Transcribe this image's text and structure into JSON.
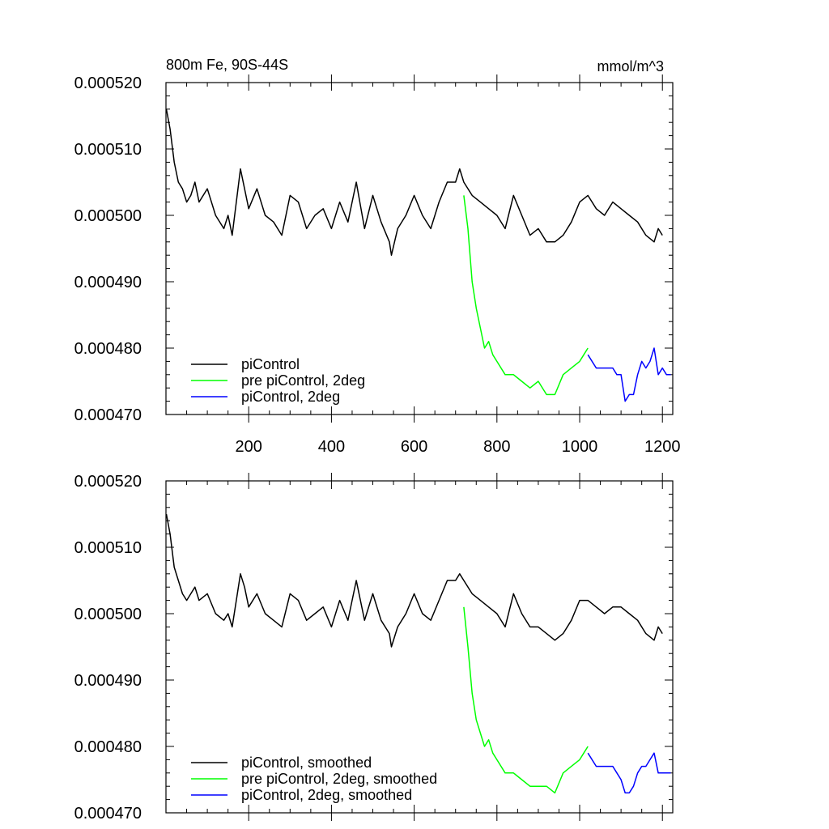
{
  "chart_data": [
    {
      "type": "line",
      "title": "800m Fe, 90S-44S",
      "units": "mmol/m^3",
      "xlim": [
        0,
        1225
      ],
      "ylim": [
        0.00047,
        0.00052
      ],
      "x_ticks": [
        "200",
        "400",
        "600",
        "800",
        "1000",
        "1200"
      ],
      "y_ticks": [
        "0.000520",
        "0.000510",
        "0.000500",
        "0.000490",
        "0.000480",
        "0.000470"
      ],
      "legend_position": "bottom-left",
      "series": [
        {
          "name": "piControl",
          "color": "#000000",
          "x": [
            1,
            10,
            20,
            30,
            40,
            50,
            60,
            70,
            80,
            100,
            120,
            140,
            150,
            160,
            170,
            180,
            190,
            200,
            220,
            240,
            260,
            280,
            300,
            320,
            340,
            360,
            380,
            400,
            420,
            440,
            460,
            480,
            500,
            520,
            540,
            545,
            560,
            580,
            600,
            620,
            640,
            660,
            680,
            700,
            710,
            720,
            740,
            760,
            780,
            800,
            820,
            840,
            860,
            880,
            900,
            920,
            940,
            960,
            980,
            1000,
            1020,
            1040,
            1060,
            1080,
            1100,
            1120,
            1140,
            1160,
            1180,
            1190,
            1200
          ],
          "y": [
            0.000516,
            0.000513,
            0.000508,
            0.000505,
            0.000504,
            0.000502,
            0.000503,
            0.000505,
            0.000502,
            0.000504,
            0.0005,
            0.000498,
            0.0005,
            0.000497,
            0.000502,
            0.000507,
            0.000504,
            0.000501,
            0.000504,
            0.0005,
            0.000499,
            0.000497,
            0.000503,
            0.000502,
            0.000498,
            0.0005,
            0.000501,
            0.000498,
            0.000502,
            0.000499,
            0.000505,
            0.000498,
            0.000503,
            0.000499,
            0.000496,
            0.000494,
            0.000498,
            0.0005,
            0.000503,
            0.0005,
            0.000498,
            0.000502,
            0.000505,
            0.000505,
            0.000507,
            0.000505,
            0.000503,
            0.000502,
            0.000501,
            0.0005,
            0.000498,
            0.000503,
            0.0005,
            0.000497,
            0.000498,
            0.000496,
            0.000496,
            0.000497,
            0.000499,
            0.000502,
            0.000503,
            0.000501,
            0.0005,
            0.000502,
            0.000501,
            0.0005,
            0.000499,
            0.000497,
            0.000496,
            0.000498,
            0.000497
          ]
        },
        {
          "name": "pre piControl, 2deg",
          "color": "#00ff00",
          "x": [
            720,
            730,
            740,
            750,
            760,
            770,
            780,
            790,
            800,
            820,
            840,
            860,
            880,
            900,
            920,
            940,
            960,
            980,
            1000,
            1010,
            1020
          ],
          "y": [
            0.000503,
            0.000498,
            0.00049,
            0.000486,
            0.000483,
            0.00048,
            0.000481,
            0.000479,
            0.000478,
            0.000476,
            0.000476,
            0.000475,
            0.000474,
            0.000475,
            0.000473,
            0.000473,
            0.000476,
            0.000477,
            0.000478,
            0.000479,
            0.00048
          ]
        },
        {
          "name": "piControl, 2deg",
          "color": "#0000ff",
          "x": [
            1020,
            1040,
            1060,
            1080,
            1090,
            1100,
            1110,
            1120,
            1130,
            1140,
            1150,
            1160,
            1170,
            1180,
            1190,
            1200,
            1210,
            1220
          ],
          "y": [
            0.000479,
            0.000477,
            0.000477,
            0.000477,
            0.000476,
            0.000476,
            0.000472,
            0.000473,
            0.000473,
            0.000476,
            0.000478,
            0.000477,
            0.000478,
            0.00048,
            0.000476,
            0.000477,
            0.000476,
            0.000476
          ]
        }
      ]
    },
    {
      "type": "line",
      "xlim": [
        0,
        1225
      ],
      "ylim": [
        0.00047,
        0.00052
      ],
      "y_ticks": [
        "0.000520",
        "0.000510",
        "0.000500",
        "0.000490",
        "0.000480",
        "0.000470"
      ],
      "legend_position": "bottom-left",
      "series": [
        {
          "name": "piControl, smoothed",
          "color": "#000000",
          "x": [
            1,
            10,
            20,
            30,
            40,
            50,
            60,
            70,
            80,
            100,
            120,
            140,
            150,
            160,
            170,
            180,
            190,
            200,
            220,
            240,
            260,
            280,
            300,
            320,
            340,
            360,
            380,
            400,
            420,
            440,
            460,
            480,
            500,
            520,
            540,
            545,
            560,
            580,
            600,
            620,
            640,
            660,
            680,
            700,
            710,
            720,
            740,
            760,
            780,
            800,
            820,
            840,
            860,
            880,
            900,
            920,
            940,
            960,
            980,
            1000,
            1020,
            1040,
            1060,
            1080,
            1100,
            1120,
            1140,
            1160,
            1180,
            1190,
            1200
          ],
          "y": [
            0.000515,
            0.000512,
            0.000507,
            0.000505,
            0.000503,
            0.000502,
            0.000503,
            0.000504,
            0.000502,
            0.000503,
            0.0005,
            0.000499,
            0.0005,
            0.000498,
            0.000502,
            0.000506,
            0.000504,
            0.000501,
            0.000503,
            0.0005,
            0.000499,
            0.000498,
            0.000503,
            0.000502,
            0.000499,
            0.0005,
            0.000501,
            0.000498,
            0.000502,
            0.000499,
            0.000505,
            0.000499,
            0.000503,
            0.000499,
            0.000497,
            0.000495,
            0.000498,
            0.0005,
            0.000503,
            0.0005,
            0.000499,
            0.000502,
            0.000505,
            0.000505,
            0.000506,
            0.000505,
            0.000503,
            0.000502,
            0.000501,
            0.0005,
            0.000498,
            0.000503,
            0.0005,
            0.000498,
            0.000498,
            0.000497,
            0.000496,
            0.000497,
            0.000499,
            0.000502,
            0.000502,
            0.000501,
            0.0005,
            0.000501,
            0.000501,
            0.0005,
            0.000499,
            0.000497,
            0.000496,
            0.000498,
            0.000497
          ]
        },
        {
          "name": "pre piControl, 2deg, smoothed",
          "color": "#00ff00",
          "x": [
            720,
            730,
            740,
            750,
            760,
            770,
            780,
            790,
            800,
            820,
            840,
            860,
            880,
            900,
            920,
            940,
            960,
            980,
            1000,
            1010,
            1020
          ],
          "y": [
            0.000501,
            0.000495,
            0.000488,
            0.000484,
            0.000482,
            0.00048,
            0.000481,
            0.000479,
            0.000478,
            0.000476,
            0.000476,
            0.000475,
            0.000474,
            0.000474,
            0.000474,
            0.000473,
            0.000476,
            0.000477,
            0.000478,
            0.000479,
            0.00048
          ]
        },
        {
          "name": "piControl, 2deg, smoothed",
          "color": "#0000ff",
          "x": [
            1020,
            1040,
            1060,
            1080,
            1090,
            1100,
            1110,
            1120,
            1130,
            1140,
            1150,
            1160,
            1170,
            1180,
            1190,
            1200,
            1210,
            1220
          ],
          "y": [
            0.000479,
            0.000477,
            0.000477,
            0.000477,
            0.000476,
            0.000475,
            0.000473,
            0.000473,
            0.000474,
            0.000476,
            0.000477,
            0.000477,
            0.000478,
            0.000479,
            0.000476,
            0.000476,
            0.000476,
            0.000476
          ]
        }
      ]
    }
  ]
}
